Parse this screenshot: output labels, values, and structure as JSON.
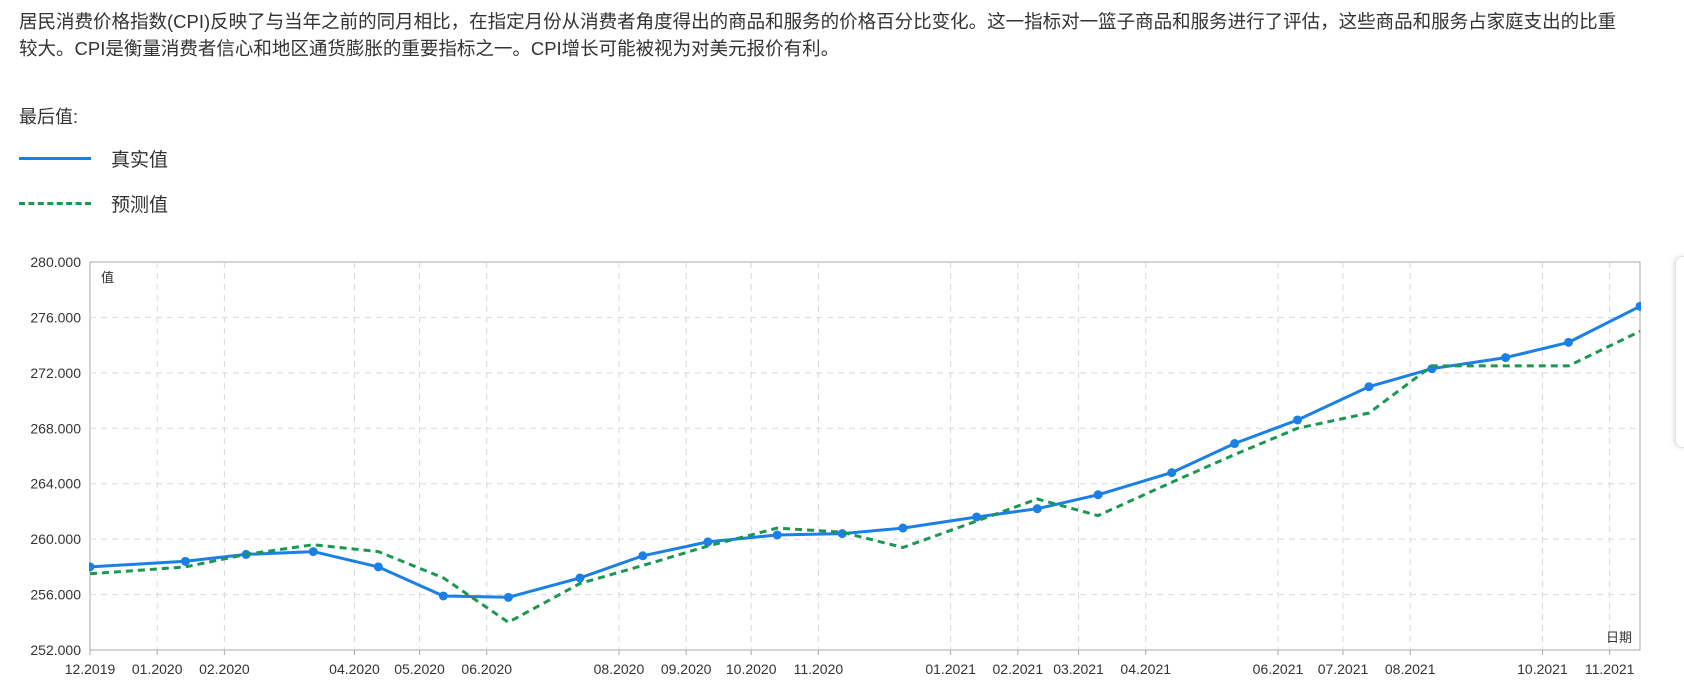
{
  "description": "居民消费价格指数(CPI)反映了与当年之前的同月相比，在指定月份从消费者角度得出的商品和服务的价格百分比变化。这一指标对一篮子商品和服务进行了评估，这些商品和服务占家庭支出的比重较大。CPI是衡量消费者信心和地区通货膨胀的重要指标之一。CPI增长可能被视为对美元报价有利。",
  "last_value_label": "最后值:",
  "legend": {
    "actual": "真实值",
    "forecast": "预测值"
  },
  "colors": {
    "actual": "#1a80e6",
    "forecast": "#1a9850",
    "grid": "#d9d9d9",
    "axis": "#aaaaaa"
  },
  "chart_data": {
    "type": "line",
    "xlabel": "日期",
    "ylabel": "值",
    "ylim": [
      252,
      280
    ],
    "yticks": [
      252,
      256,
      260,
      264,
      268,
      272,
      276,
      280
    ],
    "ytick_labels": [
      "252.000",
      "256.000",
      "260.000",
      "264.000",
      "268.000",
      "272.000",
      "276.000",
      "280.000"
    ],
    "x_range": [
      "2019-12-01",
      "2021-11-15"
    ],
    "xtick_labels": [
      "12.2019",
      "01.2020",
      "02.2020",
      "04.2020",
      "05.2020",
      "06.2020",
      "08.2020",
      "09.2020",
      "10.2020",
      "11.2020",
      "01.2021",
      "02.2021",
      "03.2021",
      "04.2021",
      "06.2021",
      "07.2021",
      "08.2021",
      "10.2021",
      "11.2021"
    ],
    "xtick_dates": [
      "2019-12-01",
      "2020-01-01",
      "2020-02-01",
      "2020-04-01",
      "2020-05-01",
      "2020-06-01",
      "2020-08-01",
      "2020-09-01",
      "2020-10-01",
      "2020-11-01",
      "2021-01-01",
      "2021-02-01",
      "2021-03-01",
      "2021-04-01",
      "2021-06-01",
      "2021-07-01",
      "2021-08-01",
      "2021-10-01",
      "2021-11-01"
    ],
    "grid": true,
    "legend_position": "top-left",
    "series": [
      {
        "name": "真实值",
        "style": "solid",
        "markers": true,
        "points": [
          [
            "2019-12-01",
            258.0
          ],
          [
            "2020-01-14",
            258.4
          ],
          [
            "2020-02-11",
            258.9
          ],
          [
            "2020-03-13",
            259.1
          ],
          [
            "2020-04-12",
            258.0
          ],
          [
            "2020-05-12",
            255.9
          ],
          [
            "2020-06-11",
            255.8
          ],
          [
            "2020-07-14",
            257.2
          ],
          [
            "2020-08-12",
            258.8
          ],
          [
            "2020-09-11",
            259.8
          ],
          [
            "2020-10-13",
            260.3
          ],
          [
            "2020-11-12",
            260.4
          ],
          [
            "2020-12-10",
            260.8
          ],
          [
            "2021-01-13",
            261.6
          ],
          [
            "2021-02-10",
            262.2
          ],
          [
            "2021-03-10",
            263.2
          ],
          [
            "2021-04-13",
            264.8
          ],
          [
            "2021-05-12",
            266.9
          ],
          [
            "2021-06-10",
            268.6
          ],
          [
            "2021-07-13",
            271.0
          ],
          [
            "2021-08-11",
            272.3
          ],
          [
            "2021-09-14",
            273.1
          ],
          [
            "2021-10-13",
            274.2
          ],
          [
            "2021-11-15",
            276.8
          ]
        ]
      },
      {
        "name": "预测值",
        "style": "dashed",
        "markers": false,
        "points": [
          [
            "2019-12-01",
            257.5
          ],
          [
            "2020-01-14",
            258.0
          ],
          [
            "2020-02-11",
            258.9
          ],
          [
            "2020-03-13",
            259.6
          ],
          [
            "2020-04-12",
            259.1
          ],
          [
            "2020-05-12",
            257.2
          ],
          [
            "2020-06-11",
            254.0
          ],
          [
            "2020-07-14",
            256.8
          ],
          [
            "2020-08-12",
            258.1
          ],
          [
            "2020-09-11",
            259.5
          ],
          [
            "2020-10-13",
            260.8
          ],
          [
            "2020-11-12",
            260.5
          ],
          [
            "2020-12-10",
            259.4
          ],
          [
            "2021-01-13",
            261.3
          ],
          [
            "2021-02-10",
            262.9
          ],
          [
            "2021-03-10",
            261.7
          ],
          [
            "2021-04-13",
            264.1
          ],
          [
            "2021-05-12",
            266.1
          ],
          [
            "2021-06-10",
            268.0
          ],
          [
            "2021-07-13",
            269.1
          ],
          [
            "2021-08-11",
            272.5
          ],
          [
            "2021-09-14",
            272.5
          ],
          [
            "2021-10-13",
            272.5
          ],
          [
            "2021-11-15",
            275.0
          ]
        ]
      }
    ]
  }
}
